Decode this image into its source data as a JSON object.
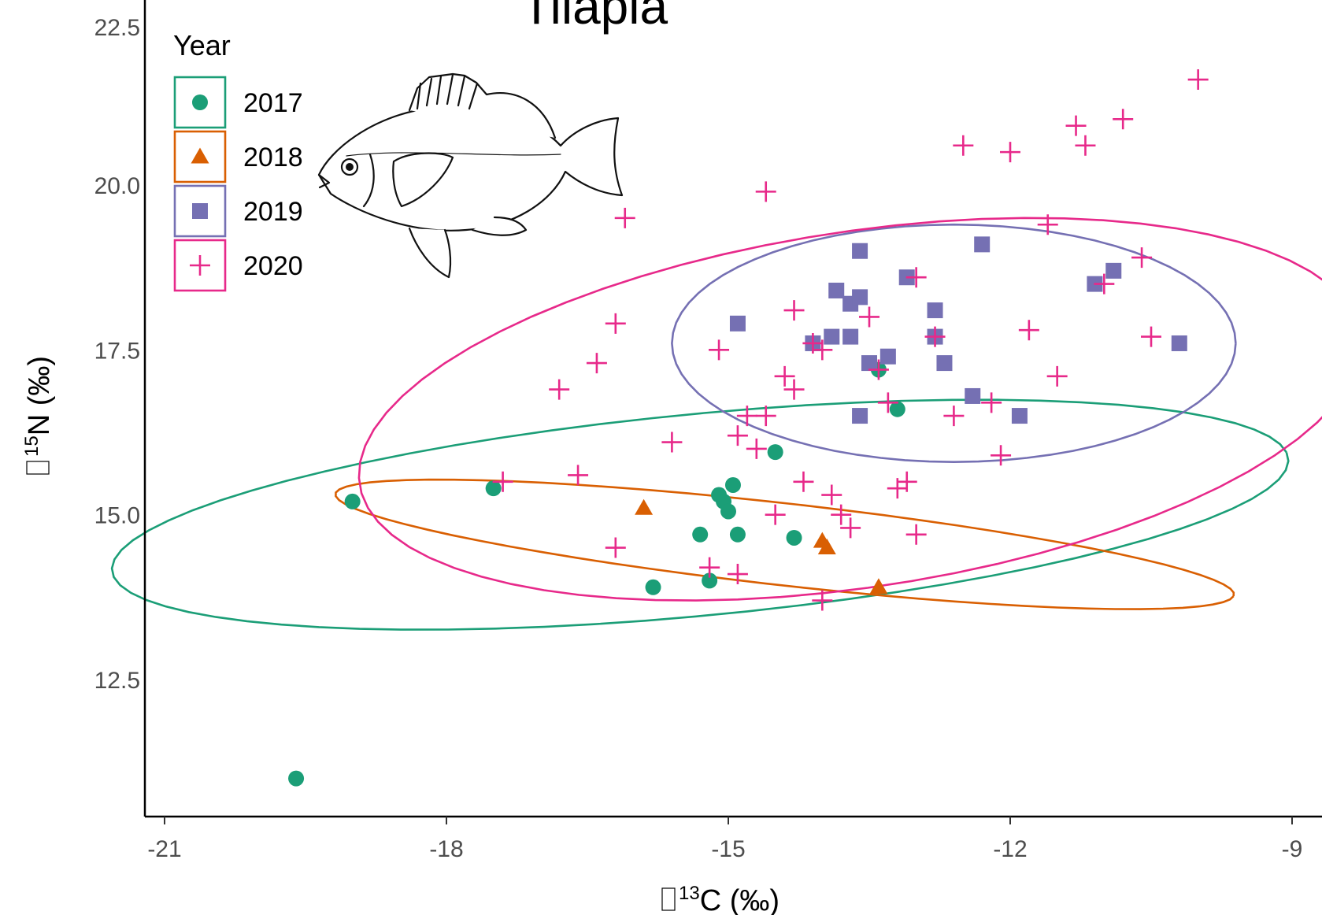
{
  "chart_data": {
    "type": "scatter",
    "title": "Tilapia",
    "xlabel": "δ13C (‰)",
    "ylabel": "δ15N (‰)",
    "xlim": [
      -21.2,
      -9.0
    ],
    "ylim": [
      10.4,
      22.0
    ],
    "xticks": [
      -21,
      -18,
      -15,
      -12,
      -9
    ],
    "yticks": [
      12.5,
      15.0,
      17.5,
      20.0,
      22.5
    ],
    "xtick_labels": [
      "-21",
      "-18",
      "-15",
      "-12",
      "-9"
    ],
    "ytick_labels": [
      "12.5",
      "15.0",
      "17.5",
      "20.0",
      "22.5"
    ],
    "grid": false,
    "legend": {
      "title": "Year",
      "position": "top-left"
    },
    "series": [
      {
        "name": "2017",
        "color": "#1b9e77",
        "marker": "circle",
        "points": [
          [
            -19.0,
            15.2
          ],
          [
            -19.6,
            11.0
          ],
          [
            -17.5,
            15.4
          ],
          [
            -15.8,
            13.9
          ],
          [
            -15.2,
            14.0
          ],
          [
            -15.3,
            14.7
          ],
          [
            -15.1,
            15.3
          ],
          [
            -15.05,
            15.2
          ],
          [
            -15.0,
            15.05
          ],
          [
            -14.95,
            15.45
          ],
          [
            -14.9,
            14.7
          ],
          [
            -14.5,
            15.95
          ],
          [
            -14.3,
            14.65
          ],
          [
            -13.4,
            17.2
          ],
          [
            -13.2,
            16.6
          ]
        ],
        "ellipse": {
          "cx": -15.3,
          "cy": 15.0,
          "a": 6.6,
          "b": 1.55,
          "angle_deg": 19
        }
      },
      {
        "name": "2018",
        "color": "#d95f02",
        "marker": "triangle",
        "points": [
          [
            -15.9,
            15.1
          ],
          [
            -14.0,
            14.6
          ],
          [
            -13.95,
            14.5
          ],
          [
            -13.4,
            13.9
          ]
        ],
        "ellipse": {
          "cx": -14.4,
          "cy": 14.55,
          "a": 5.1,
          "b": 0.63,
          "angle_deg": -20.5
        }
      },
      {
        "name": "2019",
        "color": "#7570b3",
        "marker": "square",
        "points": [
          [
            -14.9,
            17.9
          ],
          [
            -14.1,
            17.6
          ],
          [
            -13.9,
            17.7
          ],
          [
            -13.7,
            17.7
          ],
          [
            -13.85,
            18.4
          ],
          [
            -13.7,
            18.2
          ],
          [
            -13.6,
            18.3
          ],
          [
            -13.6,
            19.0
          ],
          [
            -13.6,
            16.5
          ],
          [
            -13.5,
            17.3
          ],
          [
            -13.3,
            17.4
          ],
          [
            -13.1,
            18.6
          ],
          [
            -12.8,
            18.1
          ],
          [
            -12.8,
            17.7
          ],
          [
            -12.7,
            17.3
          ],
          [
            -12.4,
            16.8
          ],
          [
            -12.3,
            19.1
          ],
          [
            -11.9,
            16.5
          ],
          [
            -11.1,
            18.5
          ],
          [
            -10.9,
            18.7
          ],
          [
            -10.2,
            17.6
          ]
        ],
        "ellipse": {
          "cx": -12.6,
          "cy": 17.6,
          "a": 3.0,
          "b": 1.8,
          "angle_deg": 0
        }
      },
      {
        "name": "2020",
        "color": "#e7298a",
        "marker": "plus",
        "points": [
          [
            -17.4,
            15.5
          ],
          [
            -16.6,
            15.6
          ],
          [
            -16.2,
            14.5
          ],
          [
            -16.1,
            19.5
          ],
          [
            -16.2,
            17.9
          ],
          [
            -16.4,
            17.3
          ],
          [
            -16.8,
            16.9
          ],
          [
            -15.6,
            16.1
          ],
          [
            -15.1,
            17.5
          ],
          [
            -14.9,
            16.2
          ],
          [
            -14.8,
            16.5
          ],
          [
            -14.7,
            16.0
          ],
          [
            -14.6,
            16.5
          ],
          [
            -14.6,
            19.9
          ],
          [
            -14.5,
            15.0
          ],
          [
            -14.4,
            17.1
          ],
          [
            -14.3,
            18.1
          ],
          [
            -14.3,
            16.9
          ],
          [
            -14.2,
            15.5
          ],
          [
            -14.1,
            17.6
          ],
          [
            -14.0,
            17.5
          ],
          [
            -13.9,
            15.3
          ],
          [
            -13.8,
            15.0
          ],
          [
            -13.7,
            14.8
          ],
          [
            -13.5,
            18.0
          ],
          [
            -13.4,
            17.2
          ],
          [
            -13.3,
            16.7
          ],
          [
            -13.2,
            15.4
          ],
          [
            -13.1,
            15.5
          ],
          [
            -13.0,
            18.6
          ],
          [
            -13.0,
            14.7
          ],
          [
            -12.8,
            17.7
          ],
          [
            -12.6,
            16.5
          ],
          [
            -12.5,
            20.6
          ],
          [
            -12.2,
            16.7
          ],
          [
            -12.1,
            15.9
          ],
          [
            -12.0,
            20.5
          ],
          [
            -11.8,
            17.8
          ],
          [
            -11.6,
            19.4
          ],
          [
            -11.5,
            17.1
          ],
          [
            -11.3,
            20.9
          ],
          [
            -11.2,
            20.6
          ],
          [
            -11.0,
            18.5
          ],
          [
            -10.8,
            21.0
          ],
          [
            -10.6,
            18.9
          ],
          [
            -10.5,
            17.7
          ],
          [
            -10.0,
            21.6
          ],
          [
            -15.2,
            14.2
          ],
          [
            -14.9,
            14.1
          ],
          [
            -14.0,
            13.7
          ]
        ],
        "ellipse": {
          "cx": -13.6,
          "cy": 16.6,
          "a": 6.6,
          "b": 2.9,
          "angle_deg": 41
        }
      }
    ]
  },
  "icons": {
    "fish": "sunfish-illustration"
  }
}
